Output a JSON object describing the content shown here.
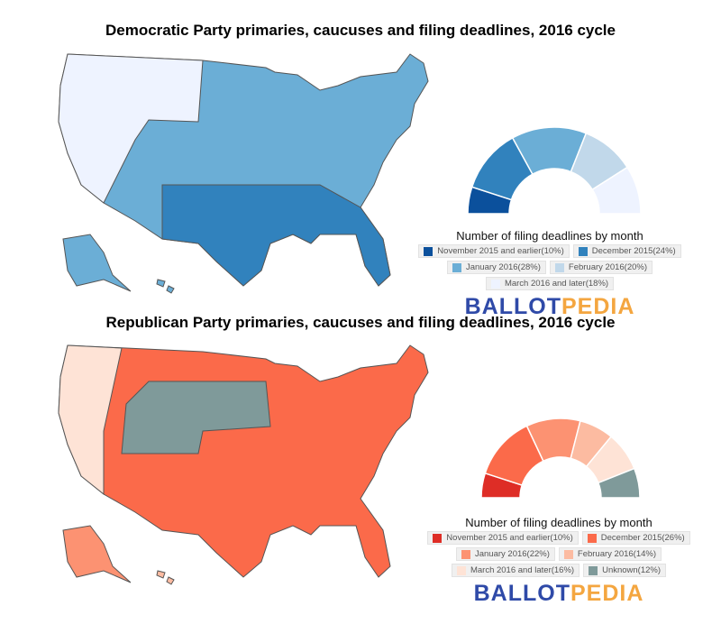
{
  "dem": {
    "title": "Democratic Party primaries, caucuses and filing deadlines, 2016 cycle",
    "legend_title": "Number of filing deadlines by month",
    "logo": {
      "part1": "BALLOT",
      "part2": "PEDIA"
    },
    "chart_data": {
      "type": "pie",
      "shape": "half-donut",
      "categories": [
        "November 2015 and earlier",
        "December 2015",
        "January 2016",
        "February 2016",
        "March 2016 and later"
      ],
      "values": [
        10,
        24,
        28,
        20,
        18
      ],
      "labels": [
        "November 2015 and earlier(10%)",
        "December 2015(24%)",
        "January 2016(28%)",
        "February 2016(20%)",
        "March 2016 and later(18%)"
      ],
      "colors": [
        "#0b509c",
        "#3182bd",
        "#6baed6",
        "#c1d8ea",
        "#eef3ff"
      ]
    }
  },
  "rep": {
    "title": "Republican Party primaries, caucuses and filing deadlines, 2016 cycle",
    "legend_title": "Number of filing deadlines by month",
    "logo": {
      "part1": "BALLOT",
      "part2": "PEDIA"
    },
    "chart_data": {
      "type": "pie",
      "shape": "half-donut",
      "categories": [
        "November 2015 and earlier",
        "December 2015",
        "January 2016",
        "February 2016",
        "March 2016 and later",
        "Unknown"
      ],
      "values": [
        10,
        26,
        22,
        14,
        16,
        12
      ],
      "labels": [
        "November 2015 and earlier(10%)",
        "December 2015(26%)",
        "January 2016(22%)",
        "February 2016(14%)",
        "March 2016 and later(16%)",
        "Unknown(12%)"
      ],
      "colors": [
        "#de2d26",
        "#fb6a4a",
        "#fc9272",
        "#fcbba1",
        "#fee3d6",
        "#7f9a9a"
      ]
    }
  }
}
